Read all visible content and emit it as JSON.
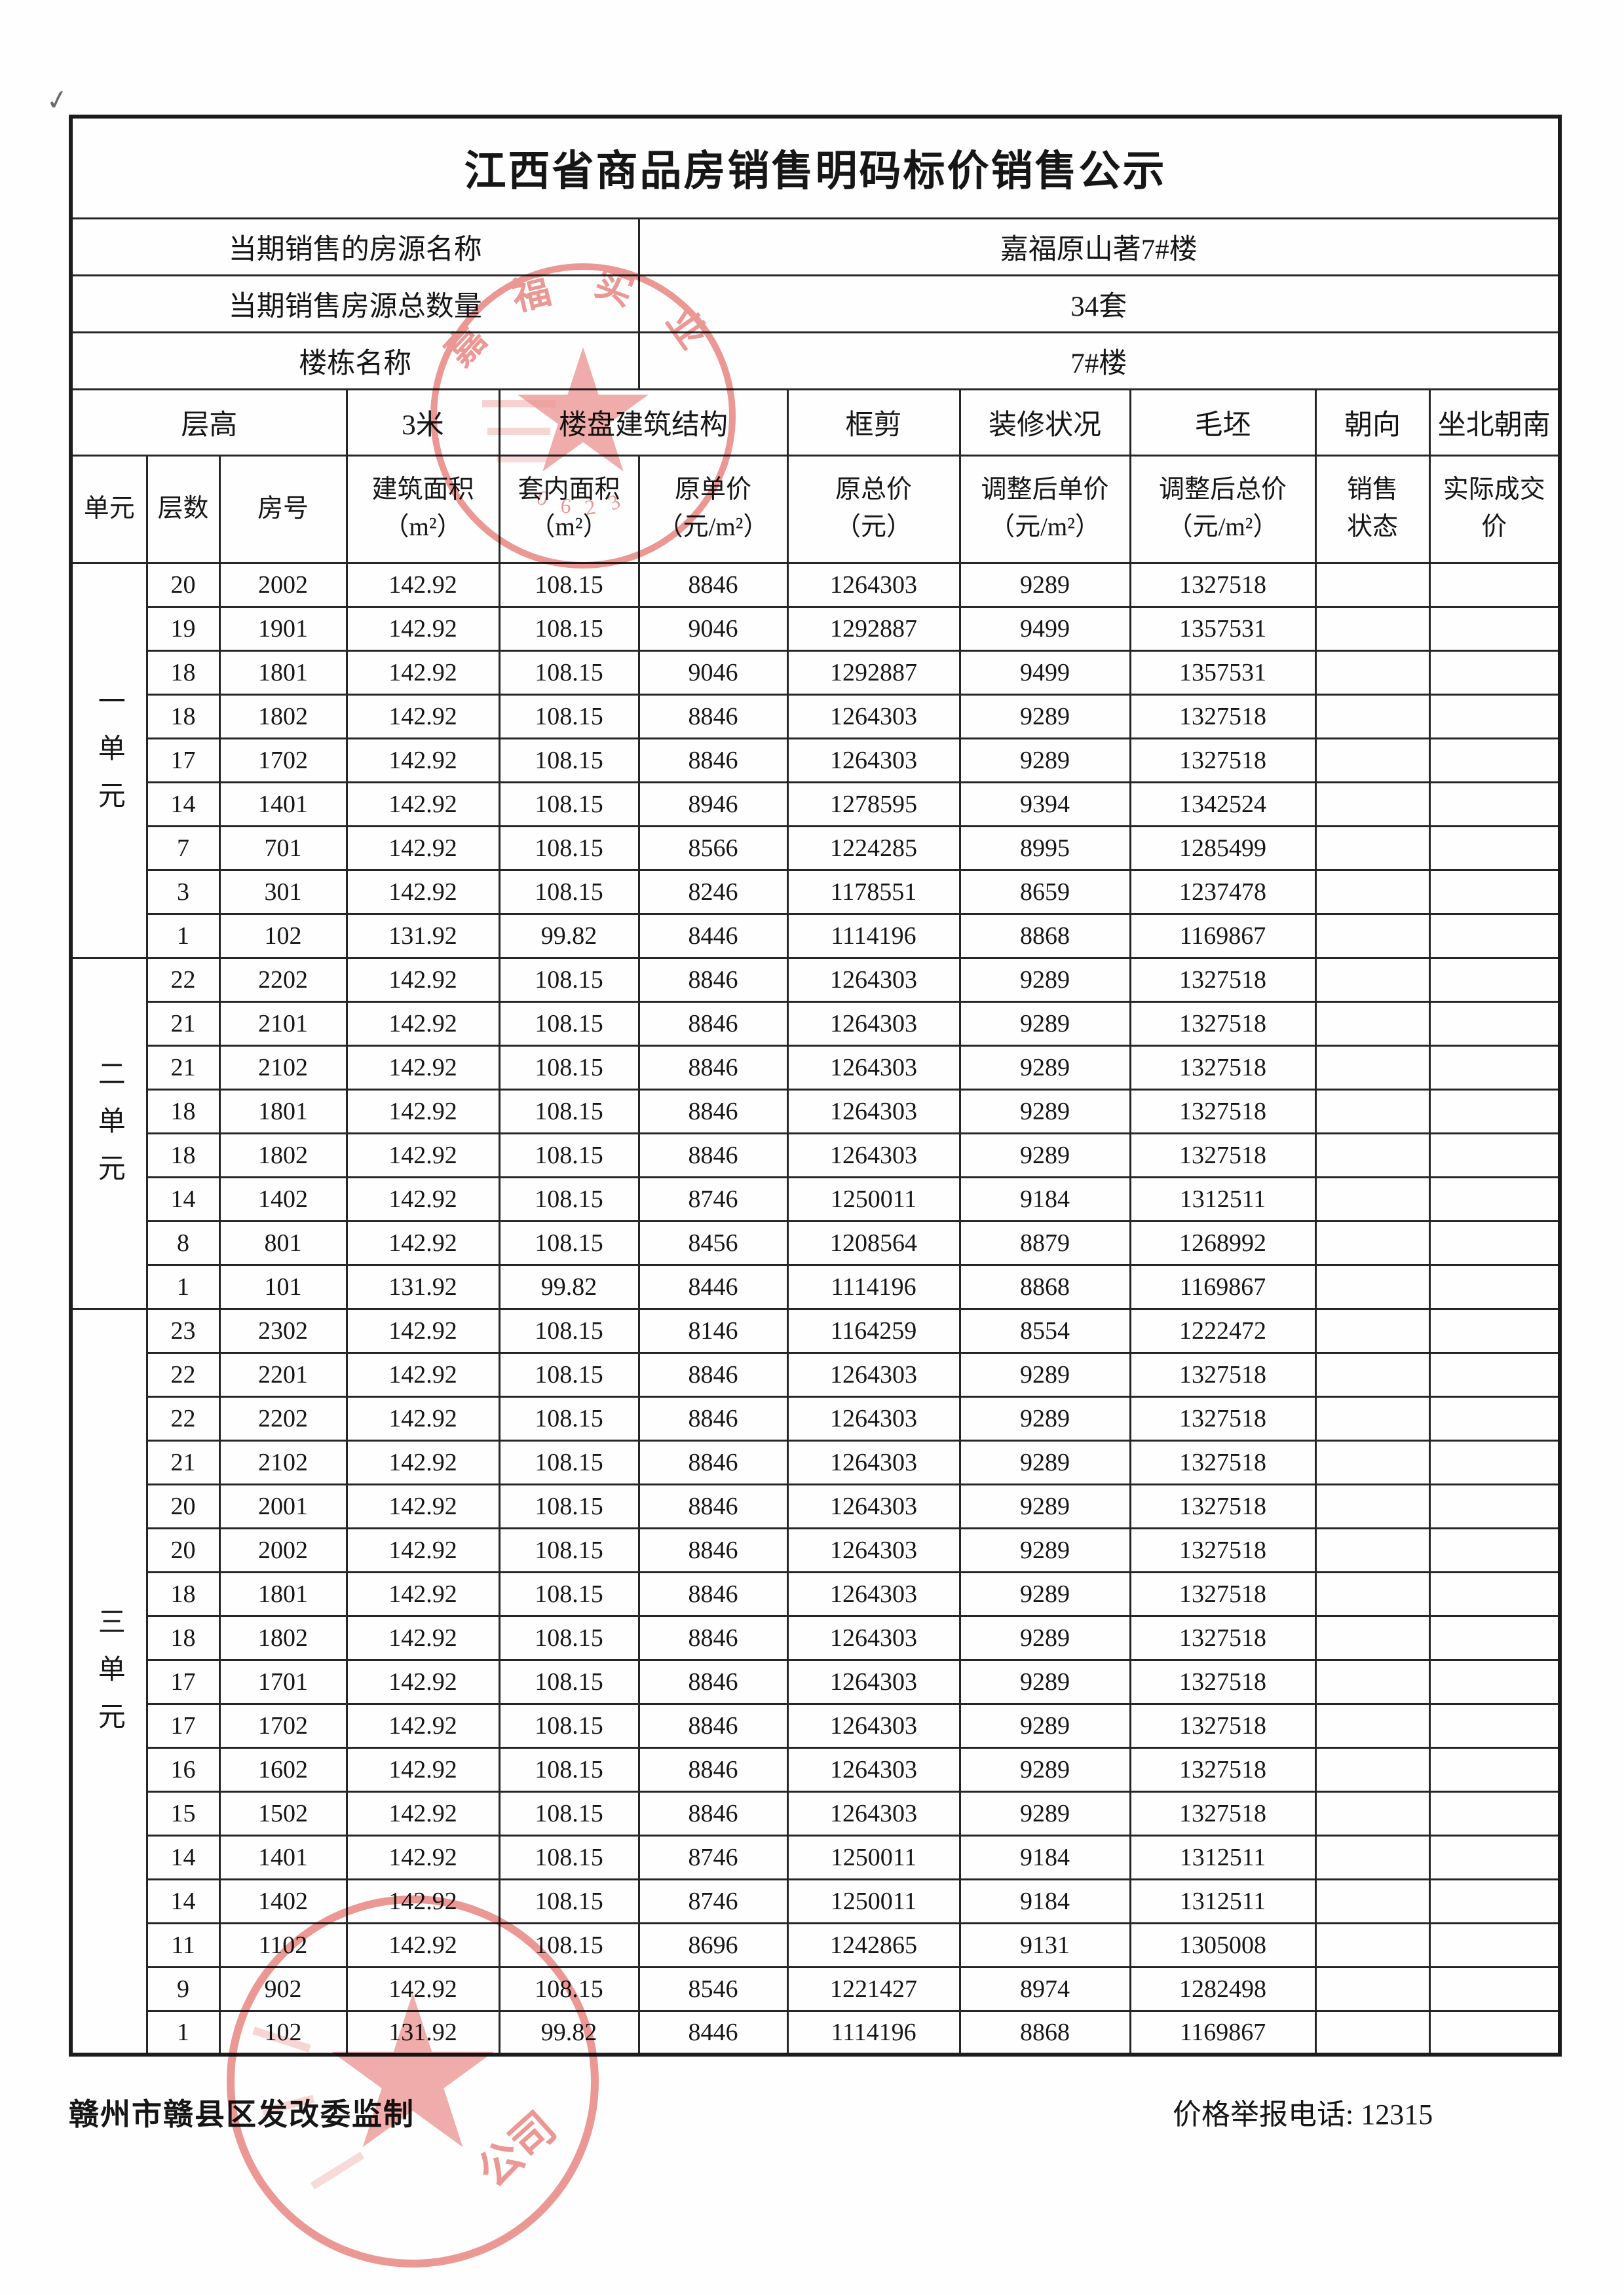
{
  "title": "江西省商品房销售明码标价销售公示",
  "annotations": {
    "checkmark": "✓"
  },
  "info": [
    {
      "label": "当期销售的房源名称",
      "value": "嘉福原山著7#楼"
    },
    {
      "label": "当期销售房源总数量",
      "value": "34套"
    },
    {
      "label": "楼栋名称",
      "value": "7#楼"
    }
  ],
  "attributes": {
    "floor_height_label": "层高",
    "floor_height_value": "3米",
    "structure_label": "楼盘建筑结构",
    "structure_value": "框剪",
    "decoration_label": "装修状况",
    "decoration_value": "毛坯",
    "orientation_label": "朝向",
    "orientation_value": "坐北朝南"
  },
  "columns": [
    "单元",
    "层数",
    "房号",
    "建筑面积\n（m²）",
    "套内面积\n（m²）",
    "原单价\n（元/m²）",
    "原总价\n（元）",
    "调整后单价\n（元/m²）",
    "调整后总价\n（元/m²）",
    "销售\n状态",
    "实际成交价"
  ],
  "units": [
    {
      "name": "一单元",
      "rows": [
        [
          "20",
          "2002",
          "142.92",
          "108.15",
          "8846",
          "1264303",
          "9289",
          "1327518",
          "",
          ""
        ],
        [
          "19",
          "1901",
          "142.92",
          "108.15",
          "9046",
          "1292887",
          "9499",
          "1357531",
          "",
          ""
        ],
        [
          "18",
          "1801",
          "142.92",
          "108.15",
          "9046",
          "1292887",
          "9499",
          "1357531",
          "",
          ""
        ],
        [
          "18",
          "1802",
          "142.92",
          "108.15",
          "8846",
          "1264303",
          "9289",
          "1327518",
          "",
          ""
        ],
        [
          "17",
          "1702",
          "142.92",
          "108.15",
          "8846",
          "1264303",
          "9289",
          "1327518",
          "",
          ""
        ],
        [
          "14",
          "1401",
          "142.92",
          "108.15",
          "8946",
          "1278595",
          "9394",
          "1342524",
          "",
          ""
        ],
        [
          "7",
          "701",
          "142.92",
          "108.15",
          "8566",
          "1224285",
          "8995",
          "1285499",
          "",
          ""
        ],
        [
          "3",
          "301",
          "142.92",
          "108.15",
          "8246",
          "1178551",
          "8659",
          "1237478",
          "",
          ""
        ],
        [
          "1",
          "102",
          "131.92",
          "99.82",
          "8446",
          "1114196",
          "8868",
          "1169867",
          "",
          ""
        ]
      ]
    },
    {
      "name": "二单元",
      "rows": [
        [
          "22",
          "2202",
          "142.92",
          "108.15",
          "8846",
          "1264303",
          "9289",
          "1327518",
          "",
          ""
        ],
        [
          "21",
          "2101",
          "142.92",
          "108.15",
          "8846",
          "1264303",
          "9289",
          "1327518",
          "",
          ""
        ],
        [
          "21",
          "2102",
          "142.92",
          "108.15",
          "8846",
          "1264303",
          "9289",
          "1327518",
          "",
          ""
        ],
        [
          "18",
          "1801",
          "142.92",
          "108.15",
          "8846",
          "1264303",
          "9289",
          "1327518",
          "",
          ""
        ],
        [
          "18",
          "1802",
          "142.92",
          "108.15",
          "8846",
          "1264303",
          "9289",
          "1327518",
          "",
          ""
        ],
        [
          "14",
          "1402",
          "142.92",
          "108.15",
          "8746",
          "1250011",
          "9184",
          "1312511",
          "",
          ""
        ],
        [
          "8",
          "801",
          "142.92",
          "108.15",
          "8456",
          "1208564",
          "8879",
          "1268992",
          "",
          ""
        ],
        [
          "1",
          "101",
          "131.92",
          "99.82",
          "8446",
          "1114196",
          "8868",
          "1169867",
          "",
          ""
        ]
      ]
    },
    {
      "name": "三单元",
      "rows": [
        [
          "23",
          "2302",
          "142.92",
          "108.15",
          "8146",
          "1164259",
          "8554",
          "1222472",
          "",
          ""
        ],
        [
          "22",
          "2201",
          "142.92",
          "108.15",
          "8846",
          "1264303",
          "9289",
          "1327518",
          "",
          ""
        ],
        [
          "22",
          "2202",
          "142.92",
          "108.15",
          "8846",
          "1264303",
          "9289",
          "1327518",
          "",
          ""
        ],
        [
          "21",
          "2102",
          "142.92",
          "108.15",
          "8846",
          "1264303",
          "9289",
          "1327518",
          "",
          ""
        ],
        [
          "20",
          "2001",
          "142.92",
          "108.15",
          "8846",
          "1264303",
          "9289",
          "1327518",
          "",
          ""
        ],
        [
          "20",
          "2002",
          "142.92",
          "108.15",
          "8846",
          "1264303",
          "9289",
          "1327518",
          "",
          ""
        ],
        [
          "18",
          "1801",
          "142.92",
          "108.15",
          "8846",
          "1264303",
          "9289",
          "1327518",
          "",
          ""
        ],
        [
          "18",
          "1802",
          "142.92",
          "108.15",
          "8846",
          "1264303",
          "9289",
          "1327518",
          "",
          ""
        ],
        [
          "17",
          "1701",
          "142.92",
          "108.15",
          "8846",
          "1264303",
          "9289",
          "1327518",
          "",
          ""
        ],
        [
          "17",
          "1702",
          "142.92",
          "108.15",
          "8846",
          "1264303",
          "9289",
          "1327518",
          "",
          ""
        ],
        [
          "16",
          "1602",
          "142.92",
          "108.15",
          "8846",
          "1264303",
          "9289",
          "1327518",
          "",
          ""
        ],
        [
          "15",
          "1502",
          "142.92",
          "108.15",
          "8846",
          "1264303",
          "9289",
          "1327518",
          "",
          ""
        ],
        [
          "14",
          "1401",
          "142.92",
          "108.15",
          "8746",
          "1250011",
          "9184",
          "1312511",
          "",
          ""
        ],
        [
          "14",
          "1402",
          "142.92",
          "108.15",
          "8746",
          "1250011",
          "9184",
          "1312511",
          "",
          ""
        ],
        [
          "11",
          "1102",
          "142.92",
          "108.15",
          "8696",
          "1242865",
          "9131",
          "1305008",
          "",
          ""
        ],
        [
          "9",
          "902",
          "142.92",
          "108.15",
          "8546",
          "1221427",
          "8974",
          "1282498",
          "",
          ""
        ],
        [
          "1",
          "102",
          "131.92",
          "99.82",
          "8446",
          "1114196",
          "8868",
          "1169867",
          "",
          ""
        ]
      ]
    }
  ],
  "footer": {
    "left": "赣州市赣县区发改委监制",
    "right": "价格举报电话: 12315"
  },
  "stamps": {
    "top_seal": {
      "arc_text": "嘉福实业",
      "serial_digits": "0623",
      "color": "#e8827e"
    },
    "bottom_seal": {
      "text_fragment": "公司",
      "color": "#e8827e"
    }
  }
}
